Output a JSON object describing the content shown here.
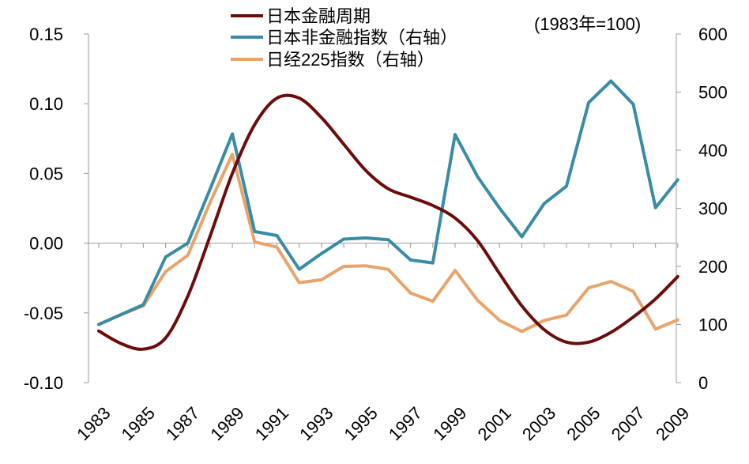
{
  "chart_data": {
    "type": "line",
    "note": "(1983年=100)",
    "x": [
      1983,
      1984,
      1985,
      1986,
      1987,
      1988,
      1989,
      1990,
      1991,
      1992,
      1993,
      1994,
      1995,
      1996,
      1997,
      1998,
      1999,
      2000,
      2001,
      2002,
      2003,
      2004,
      2005,
      2006,
      2007,
      2008,
      2009
    ],
    "x_tick_labels": [
      "1983",
      "1985",
      "1987",
      "1989",
      "1991",
      "1993",
      "1995",
      "1997",
      "1999",
      "2001",
      "2003",
      "2005",
      "2007",
      "2009"
    ],
    "left_axis": {
      "ylim": [
        -0.1,
        0.15
      ],
      "ticks": [
        "0.15",
        "0.10",
        "0.05",
        "0.00",
        "-0.05",
        "-0.10"
      ],
      "tick_values": [
        0.15,
        0.1,
        0.05,
        0.0,
        -0.05,
        -0.1
      ]
    },
    "right_axis": {
      "ylim": [
        0,
        600
      ],
      "ticks": [
        "600",
        "500",
        "400",
        "300",
        "200",
        "100",
        "0"
      ],
      "tick_values": [
        600,
        500,
        400,
        300,
        200,
        100,
        0
      ]
    },
    "series": [
      {
        "name": "日本金融周期",
        "axis": "left",
        "color": "#6b0d0d",
        "smooth": true,
        "values": [
          -0.063,
          -0.072,
          -0.076,
          -0.068,
          -0.038,
          0.005,
          0.05,
          0.085,
          0.104,
          0.104,
          0.09,
          0.071,
          0.052,
          0.039,
          0.033,
          0.027,
          0.018,
          0.002,
          -0.022,
          -0.045,
          -0.062,
          -0.071,
          -0.071,
          -0.064,
          -0.053,
          -0.04,
          -0.024
        ]
      },
      {
        "name": "日本非金融指数（右轴）",
        "axis": "right",
        "color": "#3a8ba5",
        "smooth": false,
        "values": [
          100,
          117,
          134,
          216,
          240,
          333,
          428,
          260,
          253,
          195,
          222,
          247,
          249,
          246,
          211,
          206,
          427,
          355,
          300,
          251,
          308,
          338,
          482,
          519,
          479,
          301,
          349
        ]
      },
      {
        "name": "日经225指数（右轴）",
        "axis": "right",
        "color": "#e8a46c",
        "smooth": false,
        "values": [
          100,
          117,
          132,
          191,
          219,
          310,
          393,
          242,
          233,
          172,
          177,
          200,
          201,
          195,
          154,
          140,
          193,
          142,
          107,
          88,
          107,
          116,
          163,
          174,
          157,
          92,
          108
        ]
      }
    ],
    "legend_position": "top-center",
    "grid": false
  }
}
